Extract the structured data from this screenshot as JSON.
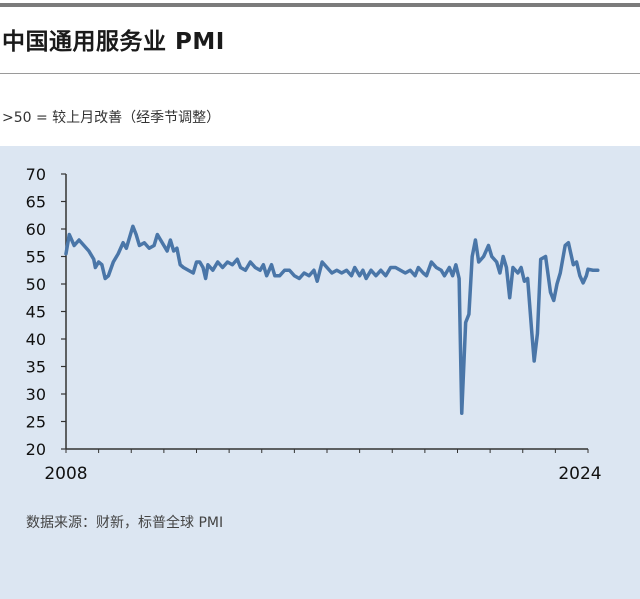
{
  "header": {
    "title": "中国通用服务业 PMI",
    "subtitle": ">50 = 较上月改善（经季节调整）"
  },
  "footer": {
    "source": "数据来源：财新，标普全球 PMI"
  },
  "chart_data": {
    "type": "line",
    "title": "中国通用服务业 PMI",
    "subtitle": ">50 = 较上月改善（经季节调整）",
    "xlabel": "",
    "ylabel": "",
    "ylim": [
      20,
      70
    ],
    "yticks": [
      20,
      25,
      30,
      35,
      40,
      45,
      50,
      55,
      60,
      65,
      70
    ],
    "xlim": [
      2008.0,
      2024.0
    ],
    "xtick_labels": [
      "2008",
      "2024"
    ],
    "grid": false,
    "line_color": "#4a76a8",
    "background_color": "#dce6f2",
    "series": [
      {
        "values": [
          [
            2008.0,
            55.5
          ],
          [
            2008.1,
            59.0
          ],
          [
            2008.25,
            57.0
          ],
          [
            2008.4,
            58.0
          ],
          [
            2008.55,
            57.0
          ],
          [
            2008.7,
            56.0
          ],
          [
            2008.85,
            54.5
          ],
          [
            2008.9,
            53.0
          ],
          [
            2009.0,
            54.0
          ],
          [
            2009.1,
            53.5
          ],
          [
            2009.2,
            51.0
          ],
          [
            2009.3,
            51.5
          ],
          [
            2009.45,
            54.0
          ],
          [
            2009.6,
            55.5
          ],
          [
            2009.75,
            57.5
          ],
          [
            2009.85,
            56.5
          ],
          [
            2009.95,
            58.5
          ],
          [
            2010.05,
            60.5
          ],
          [
            2010.15,
            59.0
          ],
          [
            2010.25,
            57.0
          ],
          [
            2010.4,
            57.5
          ],
          [
            2010.55,
            56.5
          ],
          [
            2010.7,
            57.0
          ],
          [
            2010.8,
            59.0
          ],
          [
            2010.9,
            58.0
          ],
          [
            2011.0,
            57.0
          ],
          [
            2011.1,
            56.0
          ],
          [
            2011.2,
            58.0
          ],
          [
            2011.3,
            56.0
          ],
          [
            2011.4,
            56.5
          ],
          [
            2011.5,
            53.5
          ],
          [
            2011.6,
            53.0
          ],
          [
            2011.75,
            52.5
          ],
          [
            2011.9,
            52.0
          ],
          [
            2012.0,
            54.0
          ],
          [
            2012.1,
            54.0
          ],
          [
            2012.2,
            53.0
          ],
          [
            2012.28,
            51.0
          ],
          [
            2012.35,
            53.5
          ],
          [
            2012.5,
            52.5
          ],
          [
            2012.65,
            54.0
          ],
          [
            2012.8,
            53.0
          ],
          [
            2012.95,
            54.0
          ],
          [
            2013.1,
            53.5
          ],
          [
            2013.25,
            54.5
          ],
          [
            2013.35,
            53.0
          ],
          [
            2013.5,
            52.5
          ],
          [
            2013.65,
            54.0
          ],
          [
            2013.8,
            53.0
          ],
          [
            2013.95,
            52.5
          ],
          [
            2014.05,
            53.5
          ],
          [
            2014.15,
            51.5
          ],
          [
            2014.3,
            53.5
          ],
          [
            2014.4,
            51.5
          ],
          [
            2014.55,
            51.5
          ],
          [
            2014.7,
            52.5
          ],
          [
            2014.85,
            52.5
          ],
          [
            2015.0,
            51.5
          ],
          [
            2015.15,
            51.0
          ],
          [
            2015.3,
            52.0
          ],
          [
            2015.45,
            51.5
          ],
          [
            2015.6,
            52.5
          ],
          [
            2015.7,
            50.5
          ],
          [
            2015.85,
            54.0
          ],
          [
            2016.0,
            53.0
          ],
          [
            2016.15,
            52.0
          ],
          [
            2016.3,
            52.5
          ],
          [
            2016.45,
            52.0
          ],
          [
            2016.6,
            52.5
          ],
          [
            2016.75,
            51.5
          ],
          [
            2016.85,
            53.0
          ],
          [
            2017.0,
            51.5
          ],
          [
            2017.1,
            52.5
          ],
          [
            2017.2,
            51.0
          ],
          [
            2017.35,
            52.5
          ],
          [
            2017.5,
            51.5
          ],
          [
            2017.65,
            52.5
          ],
          [
            2017.8,
            51.5
          ],
          [
            2017.95,
            53.0
          ],
          [
            2018.1,
            53.0
          ],
          [
            2018.25,
            52.5
          ],
          [
            2018.4,
            52.0
          ],
          [
            2018.55,
            52.5
          ],
          [
            2018.7,
            51.5
          ],
          [
            2018.8,
            53.0
          ],
          [
            2018.95,
            52.0
          ],
          [
            2019.05,
            51.5
          ],
          [
            2019.2,
            54.0
          ],
          [
            2019.35,
            53.0
          ],
          [
            2019.5,
            52.5
          ],
          [
            2019.6,
            51.5
          ],
          [
            2019.75,
            53.0
          ],
          [
            2019.85,
            51.5
          ],
          [
            2019.95,
            53.5
          ],
          [
            2020.05,
            51.0
          ],
          [
            2020.13,
            26.5
          ],
          [
            2020.25,
            43.0
          ],
          [
            2020.35,
            44.5
          ],
          [
            2020.45,
            55.0
          ],
          [
            2020.55,
            58.0
          ],
          [
            2020.65,
            54.0
          ],
          [
            2020.8,
            55.0
          ],
          [
            2020.95,
            57.0
          ],
          [
            2021.05,
            55.0
          ],
          [
            2021.2,
            54.0
          ],
          [
            2021.3,
            52.0
          ],
          [
            2021.4,
            55.0
          ],
          [
            2021.5,
            53.0
          ],
          [
            2021.6,
            47.5
          ],
          [
            2021.7,
            53.0
          ],
          [
            2021.85,
            52.0
          ],
          [
            2021.95,
            53.0
          ],
          [
            2022.05,
            50.5
          ],
          [
            2022.15,
            51.0
          ],
          [
            2022.28,
            41.0
          ],
          [
            2022.35,
            36.0
          ],
          [
            2022.45,
            41.0
          ],
          [
            2022.55,
            54.5
          ],
          [
            2022.7,
            55.0
          ],
          [
            2022.85,
            48.5
          ],
          [
            2022.95,
            47.0
          ],
          [
            2023.05,
            50.0
          ],
          [
            2023.15,
            52.0
          ],
          [
            2023.3,
            57.0
          ],
          [
            2023.4,
            57.5
          ],
          [
            2023.55,
            53.5
          ],
          [
            2023.65,
            54.0
          ],
          [
            2023.75,
            51.5
          ],
          [
            2023.85,
            50.2
          ],
          [
            2023.95,
            51.5
          ],
          [
            2024.0,
            52.7
          ],
          [
            2024.15,
            52.5
          ],
          [
            2024.3,
            52.5
          ]
        ]
      }
    ]
  }
}
